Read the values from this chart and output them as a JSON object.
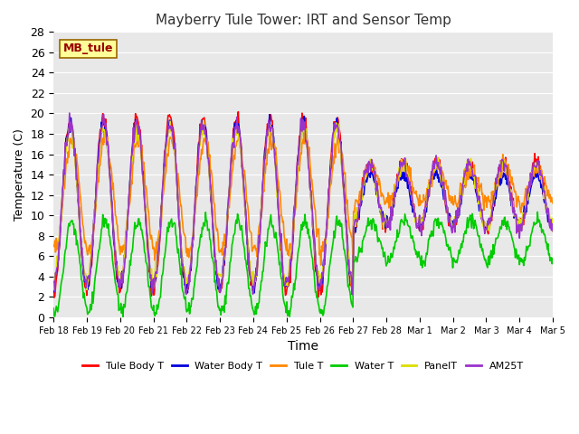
{
  "title": "Mayberry Tule Tower: IRT and Sensor Temp",
  "xlabel": "Time",
  "ylabel": "Temperature (C)",
  "ylim": [
    0,
    28
  ],
  "yticks": [
    0,
    2,
    4,
    6,
    8,
    10,
    12,
    14,
    16,
    18,
    20,
    22,
    24,
    26,
    28
  ],
  "xtick_labels": [
    "Feb 18",
    "Feb 19",
    "Feb 20",
    "Feb 21",
    "Feb 22",
    "Feb 23",
    "Feb 24",
    "Feb 25",
    "Feb 26",
    "Feb 27",
    "Feb 28",
    "Mar 1",
    "Mar 2",
    "Mar 3",
    "Mar 4",
    "Mar 5"
  ],
  "annotation_text": "MB_tule",
  "annotation_bbox_facecolor": "#FFFF99",
  "annotation_bbox_edgecolor": "#996600",
  "annotation_fontsize": 9,
  "annotation_color": "#990000",
  "plot_bg_color": "#E8E8E8",
  "grid_color": "white",
  "series": [
    {
      "label": "Tule Body T",
      "color": "#FF0000",
      "linewidth": 1.2
    },
    {
      "label": "Water Body T",
      "color": "#0000DD",
      "linewidth": 1.2
    },
    {
      "label": "Tule T",
      "color": "#FF8800",
      "linewidth": 1.2
    },
    {
      "label": "Water T",
      "color": "#00CC00",
      "linewidth": 1.2
    },
    {
      "label": "PanelT",
      "color": "#DDDD00",
      "linewidth": 1.2
    },
    {
      "label": "AM25T",
      "color": "#9933CC",
      "linewidth": 1.2
    }
  ],
  "n_days": 15,
  "seed": 42
}
